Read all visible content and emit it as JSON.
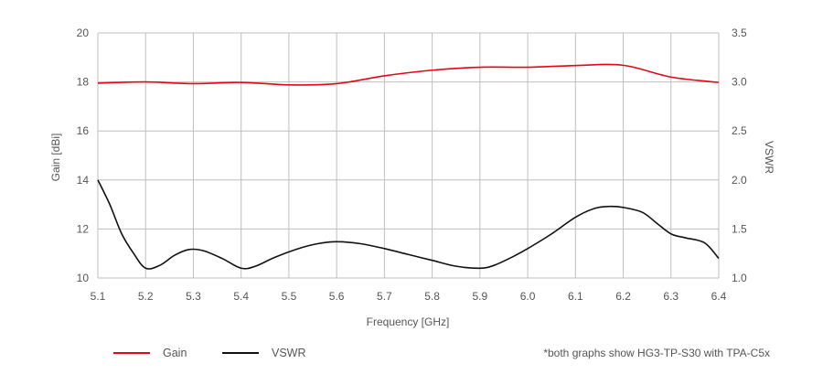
{
  "chart_data": {
    "type": "line",
    "xlabel": "Frequency [GHz]",
    "ylabel_left": "Gain [dBi]",
    "ylabel_right": "VSWR",
    "xlim": [
      5.1,
      6.4
    ],
    "ylim_left": [
      10,
      20
    ],
    "ylim_right": [
      1.0,
      3.5
    ],
    "x_ticks": [
      "5.1",
      "5.2",
      "5.3",
      "5.4",
      "5.5",
      "5.6",
      "5.7",
      "5.8",
      "5.9",
      "6.0",
      "6.1",
      "6.2",
      "6.3",
      "6.4"
    ],
    "y_ticks_left": [
      "10",
      "12",
      "14",
      "16",
      "18",
      "20"
    ],
    "y_ticks_right": [
      "1.0",
      "1.5",
      "2.0",
      "2.5",
      "3.0",
      "3.5"
    ],
    "grid": true,
    "series": [
      {
        "name": "Gain",
        "axis": "left",
        "color": "#e30613",
        "x": [
          5.1,
          5.2,
          5.3,
          5.4,
          5.5,
          5.6,
          5.7,
          5.8,
          5.9,
          6.0,
          6.1,
          6.2,
          6.3,
          6.4
        ],
        "y": [
          17.95,
          18.0,
          17.93,
          17.98,
          17.88,
          17.93,
          18.25,
          18.48,
          18.6,
          18.6,
          18.67,
          18.68,
          18.2,
          17.98
        ]
      },
      {
        "name": "VSWR",
        "axis": "right",
        "color": "#111111",
        "x": [
          5.1,
          5.125,
          5.15,
          5.175,
          5.2,
          5.23,
          5.26,
          5.29,
          5.32,
          5.36,
          5.4,
          5.43,
          5.47,
          5.52,
          5.56,
          5.6,
          5.65,
          5.7,
          5.75,
          5.8,
          5.85,
          5.9,
          5.93,
          5.97,
          6.0,
          6.05,
          6.1,
          6.14,
          6.17,
          6.2,
          6.24,
          6.27,
          6.3,
          6.33,
          6.37,
          6.4
        ],
        "y": [
          2.0,
          1.75,
          1.45,
          1.25,
          1.1,
          1.13,
          1.23,
          1.29,
          1.28,
          1.2,
          1.1,
          1.12,
          1.21,
          1.3,
          1.35,
          1.37,
          1.35,
          1.3,
          1.24,
          1.18,
          1.12,
          1.1,
          1.13,
          1.22,
          1.3,
          1.45,
          1.62,
          1.71,
          1.73,
          1.72,
          1.67,
          1.56,
          1.45,
          1.41,
          1.36,
          1.2
        ]
      }
    ],
    "legend": [
      "Gain",
      "VSWR"
    ],
    "legend_position": "bottom-left",
    "footnote": "*both graphs show HG3-TP-S30 with TPA-C5x"
  },
  "colors": {
    "gain": "#e30613",
    "vswr": "#111111",
    "grid": "#bfbfbf",
    "text": "#555555"
  }
}
